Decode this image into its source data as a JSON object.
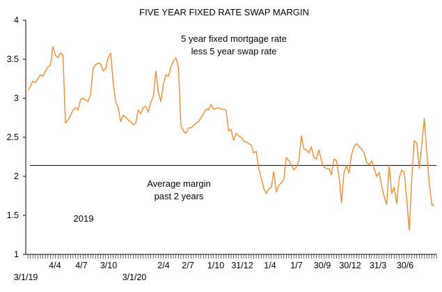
{
  "chart_data": {
    "type": "line",
    "title": "FIVE YEAR FIXED RATE SWAP MARGIN",
    "xlabel": "",
    "ylabel": "",
    "ylim": [
      1,
      4
    ],
    "yticks": [
      "1",
      "1.5",
      "2",
      "2.5",
      "3",
      "3.5",
      "4"
    ],
    "xtick_labels": [
      {
        "label": "3/1/19",
        "row": 2
      },
      {
        "label": "4/4",
        "row": 1
      },
      {
        "label": "4/7",
        "row": 1
      },
      {
        "label": "3/10",
        "row": 1
      },
      {
        "label": "3/1/20",
        "row": 2
      },
      {
        "label": "2/4",
        "row": 1
      },
      {
        "label": "2/7",
        "row": 1
      },
      {
        "label": "1/10",
        "row": 1
      },
      {
        "label": "31/12",
        "row": 1
      },
      {
        "label": "1/4",
        "row": 1
      },
      {
        "label": "1/7",
        "row": 1
      },
      {
        "label": "30/9",
        "row": 1
      },
      {
        "label": "30/12",
        "row": 1
      },
      {
        "label": "31/3",
        "row": 1
      },
      {
        "label": "30/6",
        "row": 1
      }
    ],
    "series": [
      {
        "color": "#f28a30",
        "values": [
          3.1,
          3.15,
          3.22,
          3.2,
          3.25,
          3.3,
          3.28,
          3.35,
          3.4,
          3.42,
          3.66,
          3.55,
          3.52,
          3.58,
          3.55,
          2.68,
          2.72,
          2.78,
          2.85,
          2.88,
          2.85,
          2.98,
          3.0,
          2.98,
          2.96,
          3.05,
          3.38,
          3.43,
          3.45,
          3.44,
          3.35,
          3.38,
          3.52,
          3.58,
          3.2,
          2.95,
          2.88,
          2.7,
          2.78,
          2.76,
          2.72,
          2.7,
          2.66,
          2.68,
          2.85,
          2.8,
          2.88,
          2.9,
          2.82,
          2.95,
          3.02,
          3.35,
          3.08,
          2.96,
          3.18,
          3.3,
          3.28,
          3.4,
          3.48,
          3.52,
          3.4,
          2.65,
          2.58,
          2.55,
          2.62,
          2.62,
          2.65,
          2.68,
          2.7,
          2.75,
          2.8,
          2.86,
          2.85,
          2.92,
          2.86,
          2.87,
          2.88,
          2.86,
          2.86,
          2.85,
          2.58,
          2.6,
          2.46,
          2.55,
          2.52,
          2.5,
          2.45,
          2.44,
          2.42,
          2.4,
          2.3,
          2.32,
          2.1,
          1.98,
          1.85,
          1.78,
          1.84,
          1.86,
          2.06,
          1.8,
          1.88,
          1.92,
          1.96,
          2.24,
          2.2,
          2.14,
          2.08,
          2.12,
          2.2,
          2.52,
          2.35,
          2.34,
          2.3,
          2.38,
          2.24,
          2.22,
          2.34,
          2.2,
          2.12,
          2.1,
          2.1,
          2.02,
          2.22,
          2.2,
          2.0,
          1.66,
          2.05,
          2.14,
          2.04,
          2.28,
          2.38,
          2.42,
          2.38,
          2.35,
          2.3,
          2.18,
          2.15,
          2.2,
          2.1,
          2.0,
          2.05,
          1.88,
          1.74,
          1.64,
          2.14,
          1.78,
          1.86,
          1.65,
          1.98,
          2.08,
          2.05,
          1.7,
          1.31,
          1.96,
          2.46,
          2.42,
          2.1,
          2.4,
          2.74,
          2.3,
          1.9,
          1.64,
          1.62
        ]
      }
    ],
    "average_line": 2.14,
    "annotations": [
      {
        "lines": [
          "5 year fixed mortgage rate",
          "less 5 year swap rate"
        ]
      },
      {
        "lines": [
          "Average margin",
          "past 2 years"
        ]
      },
      {
        "lines": [
          "2019"
        ]
      }
    ],
    "grid": false,
    "legend": "none"
  }
}
